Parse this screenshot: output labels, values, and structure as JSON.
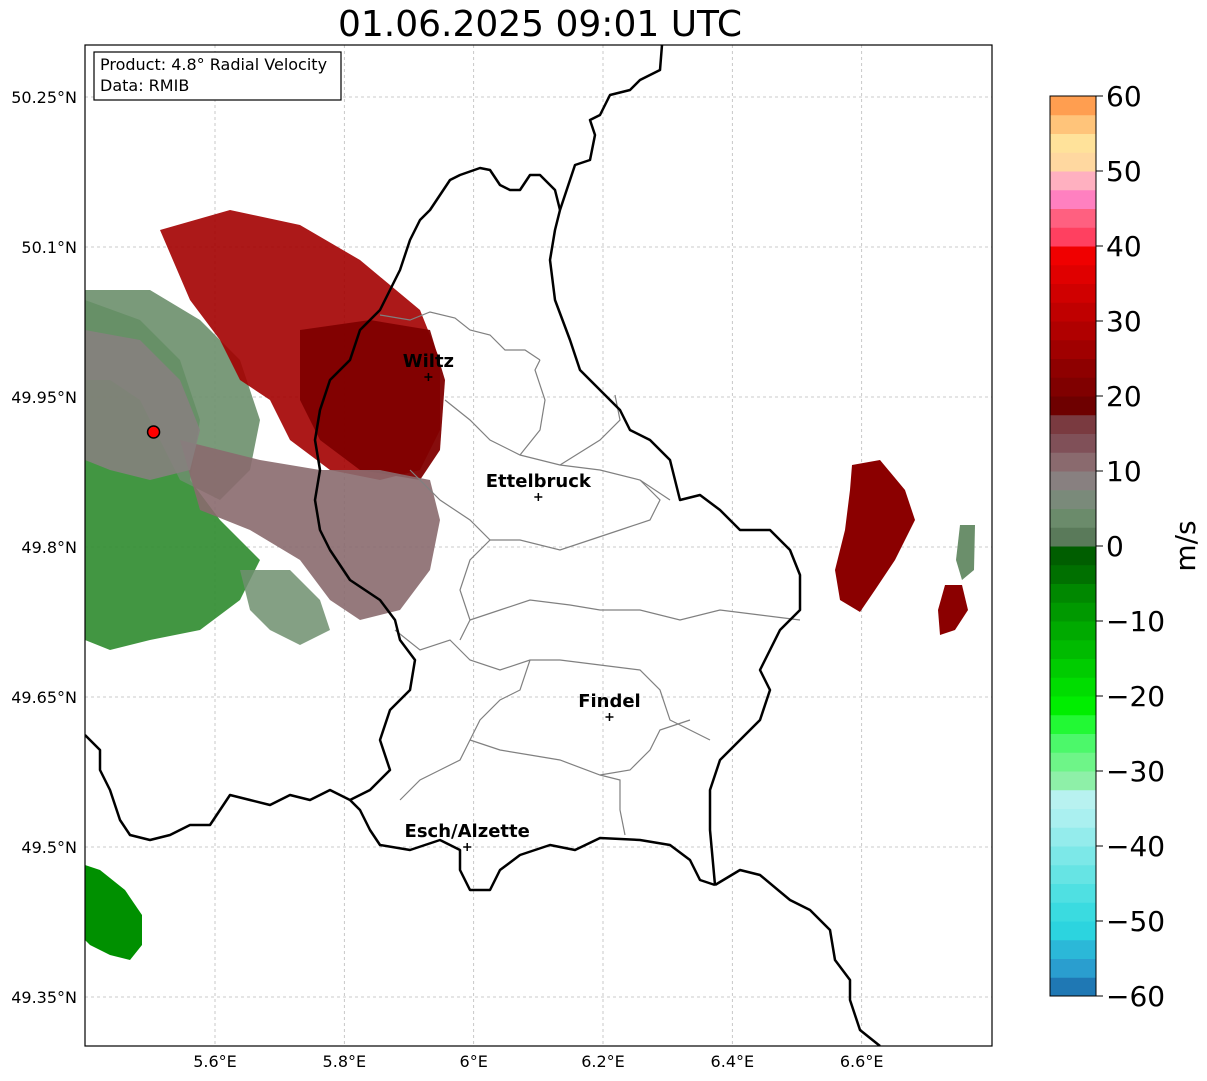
{
  "title": "01.06.2025 09:01 UTC",
  "info_box": {
    "product": "Product: 4.8° Radial Velocity",
    "data": "Data: RMIB"
  },
  "lat_ticks": [
    {
      "value": 50.25,
      "label": "50.25°N"
    },
    {
      "value": 50.1,
      "label": "50.1°N"
    },
    {
      "value": 49.95,
      "label": "49.95°N"
    },
    {
      "value": 49.8,
      "label": "49.8°N"
    },
    {
      "value": 49.65,
      "label": "49.65°N"
    },
    {
      "value": 49.5,
      "label": "49.5°N"
    },
    {
      "value": 49.35,
      "label": "49.35°N"
    }
  ],
  "lon_ticks": [
    {
      "value": 5.6,
      "label": "5.6°E"
    },
    {
      "value": 5.8,
      "label": "5.8°E"
    },
    {
      "value": 6.0,
      "label": "6°E"
    },
    {
      "value": 6.2,
      "label": "6.2°E"
    },
    {
      "value": 6.4,
      "label": "6.4°E"
    },
    {
      "value": 6.6,
      "label": "6.6°E"
    }
  ],
  "cities": [
    {
      "name": "Wiltz",
      "lon": 5.93,
      "lat": 49.97
    },
    {
      "name": "Ettelbruck",
      "lon": 6.1,
      "lat": 49.85
    },
    {
      "name": "Findel",
      "lon": 6.21,
      "lat": 49.63
    },
    {
      "name": "Esch/Alzette",
      "lon": 5.99,
      "lat": 49.5
    }
  ],
  "radar_site": {
    "lon": 5.505,
    "lat": 49.915
  },
  "colorbar": {
    "label": "m/s",
    "ticks": [
      60,
      50,
      40,
      30,
      20,
      10,
      0,
      -10,
      -20,
      -30,
      -40,
      -50,
      -60
    ],
    "tick_labels": [
      "60",
      "50",
      "40",
      "30",
      "20",
      "10",
      "0",
      "−10",
      "−20",
      "−30",
      "−40",
      "−50",
      "−60"
    ],
    "min": -60,
    "max": 60
  }
}
